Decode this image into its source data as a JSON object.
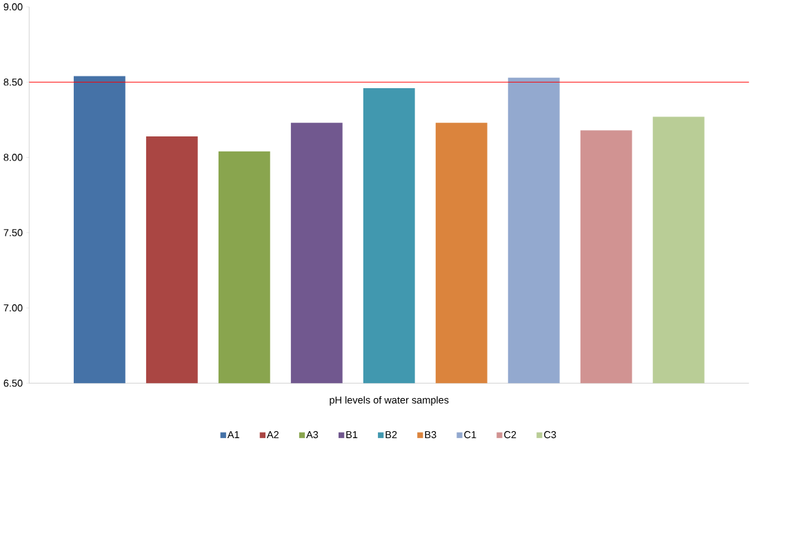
{
  "chart_data": {
    "type": "bar",
    "categories": [
      "pH levels of water samples"
    ],
    "series": [
      {
        "name": "A1",
        "color": "#4572a7",
        "values": [
          8.54
        ]
      },
      {
        "name": "A2",
        "color": "#aa4643",
        "values": [
          8.14
        ]
      },
      {
        "name": "A3",
        "color": "#89a54e",
        "values": [
          8.04
        ]
      },
      {
        "name": "B1",
        "color": "#71588f",
        "values": [
          8.23
        ]
      },
      {
        "name": "B2",
        "color": "#4198af",
        "values": [
          8.46
        ]
      },
      {
        "name": "B3",
        "color": "#db843d",
        "values": [
          8.23
        ]
      },
      {
        "name": "C1",
        "color": "#93a9cf",
        "values": [
          8.53
        ]
      },
      {
        "name": "C2",
        "color": "#d19392",
        "values": [
          8.18
        ]
      },
      {
        "name": "C3",
        "color": "#b9cd96",
        "values": [
          8.27
        ]
      }
    ],
    "ylim": [
      6.5,
      9.0
    ],
    "yticks": [
      {
        "value": 6.5,
        "label": "6.50"
      },
      {
        "value": 7.0,
        "label": "7.00"
      },
      {
        "value": 7.5,
        "label": "7.50"
      },
      {
        "value": 8.0,
        "label": "8.00"
      },
      {
        "value": 8.5,
        "label": "8.50"
      },
      {
        "value": 9.0,
        "label": "9.00"
      }
    ],
    "ref_lines": [
      {
        "axis": "y",
        "value": 8.5,
        "color": "#ff0000"
      }
    ],
    "grid": false,
    "legend": "bottom"
  }
}
